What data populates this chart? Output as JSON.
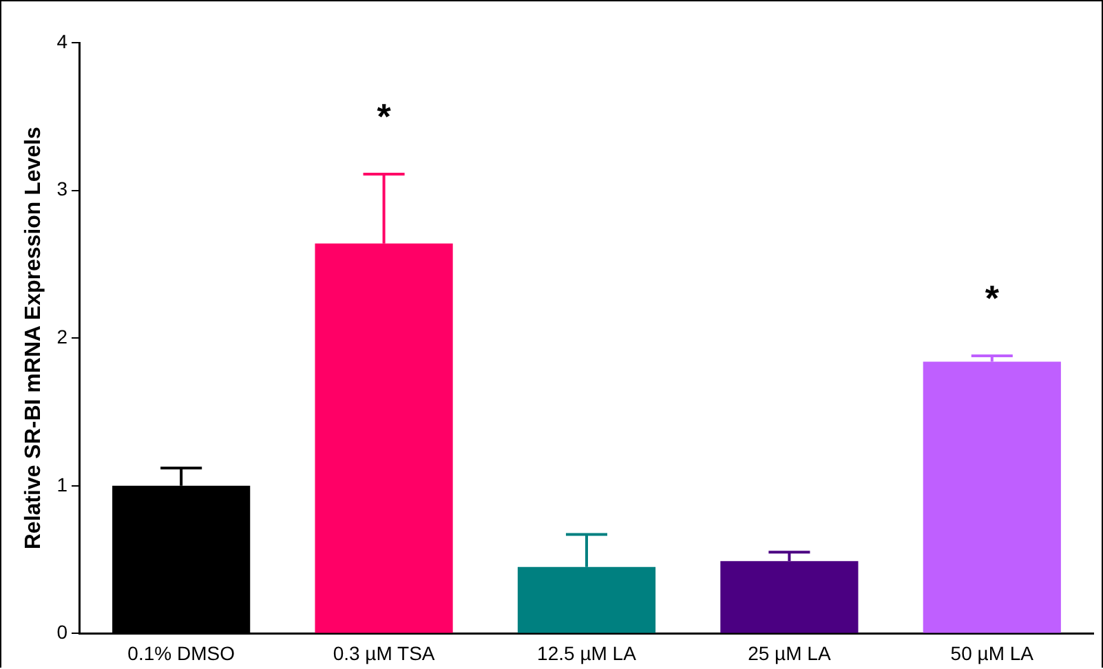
{
  "chart_data": {
    "type": "bar",
    "ylabel": "Relative SR-BI mRNA Expression Levels",
    "categories": [
      "0.1% DMSO",
      "0.3 µM TSA",
      "12.5 µM LA",
      "25 µM LA",
      "50 µM LA"
    ],
    "values": [
      1.0,
      2.64,
      0.45,
      0.49,
      1.84
    ],
    "colors": [
      "#000000",
      "#ff0066",
      "#008080",
      "#4b0082",
      "#bf5fff"
    ],
    "errors": [
      [
        1.0,
        1.12
      ],
      [
        2.64,
        3.11
      ],
      [
        0.45,
        0.67
      ],
      [
        0.49,
        0.55
      ],
      [
        1.84,
        1.88
      ]
    ],
    "ylim": [
      0,
      4
    ],
    "yticks": [
      0,
      1,
      2,
      3,
      4
    ],
    "grid": false,
    "legend": false,
    "annotations": [
      "*",
      "*"
    ]
  }
}
